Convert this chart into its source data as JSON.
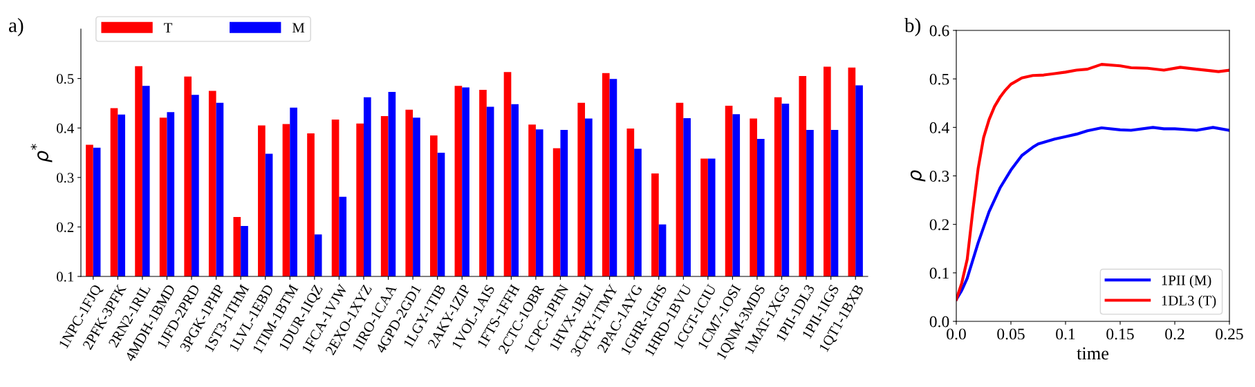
{
  "chart_data": [
    {
      "type": "bar",
      "title": "a)",
      "ylabel": "ρ$^{*}$",
      "categories": [
        "1NPC-1FJQ",
        "2PFK-3PFK",
        "2RN2-1RIL",
        "4MDH-1BMD",
        "1JFD-2PRD",
        "3PGK-1PHP",
        "1ST3-1THM",
        "1LVL-1EBD",
        "1TIM-1BTM",
        "1DUR-1IQZ",
        "1FCA-1VJW",
        "2EXO-1XYZ",
        "1IRO-1CAA",
        "4GPD-2GD1",
        "1LGY-1TIB",
        "2AKY-1ZIP",
        "1VOL-1AIS",
        "1FTS-1FFH",
        "2CTC-1OBR",
        "1CPC-1PHN",
        "1HVX-1BLI",
        "3CHY-1TMY",
        "2PAC-1AYG",
        "1GHR-1GHS",
        "1HRD-1BVU",
        "1CGT-1CIU",
        "1CM7-1OSI",
        "1QNM-3MDS",
        "1MAT-1XGS",
        "1PII-1DL3",
        "1PII-1IGS",
        "1QT1-1BXB"
      ],
      "series": [
        {
          "name": "T",
          "color": "#ff0000",
          "values": [
            0.366,
            0.44,
            0.525,
            0.421,
            0.504,
            0.475,
            0.22,
            0.405,
            0.408,
            0.389,
            0.417,
            0.409,
            0.424,
            0.437,
            0.385,
            0.485,
            0.477,
            0.513,
            0.407,
            0.359,
            0.451,
            0.511,
            0.399,
            0.308,
            0.451,
            0.338,
            0.445,
            0.419,
            0.462,
            0.505,
            0.524,
            0.522
          ]
        },
        {
          "name": "M",
          "color": "#0000ff",
          "values": [
            0.36,
            0.427,
            0.485,
            0.432,
            0.467,
            0.451,
            0.202,
            0.348,
            0.441,
            0.185,
            0.261,
            0.462,
            0.473,
            0.421,
            0.35,
            0.482,
            0.443,
            0.448,
            0.397,
            0.396,
            0.419,
            0.499,
            0.358,
            0.205,
            0.42,
            0.338,
            0.428,
            0.378,
            0.449,
            0.396,
            0.396,
            0.486
          ]
        }
      ],
      "ylim": [
        0.1,
        0.6
      ],
      "yticks": [
        0.1,
        0.2,
        0.3,
        0.4,
        0.5
      ],
      "grid": false,
      "legend": "top left"
    },
    {
      "type": "line",
      "title": "b)",
      "xlabel": "time",
      "ylabel": "ρ",
      "series": [
        {
          "name": "1PII (M)",
          "color": "#0000ff",
          "x": [
            0,
            0.005,
            0.01,
            0.02,
            0.03,
            0.04,
            0.05,
            0.06,
            0.07,
            0.075,
            0.09,
            0.1,
            0.11,
            0.12,
            0.133,
            0.15,
            0.16,
            0.18,
            0.19,
            0.2,
            0.22,
            0.235,
            0.25
          ],
          "values": [
            0.045,
            0.064,
            0.089,
            0.162,
            0.226,
            0.275,
            0.312,
            0.342,
            0.359,
            0.366,
            0.376,
            0.381,
            0.386,
            0.393,
            0.399,
            0.395,
            0.394,
            0.4,
            0.397,
            0.397,
            0.394,
            0.4,
            0.394
          ]
        },
        {
          "name": "1DL3 (T)",
          "color": "#ff0000",
          "x": [
            0,
            0.005,
            0.01,
            0.015,
            0.02,
            0.025,
            0.03,
            0.035,
            0.04,
            0.045,
            0.05,
            0.06,
            0.07,
            0.08,
            0.09,
            0.1,
            0.11,
            0.12,
            0.133,
            0.15,
            0.16,
            0.175,
            0.19,
            0.205,
            0.22,
            0.24,
            0.25
          ],
          "values": [
            0.045,
            0.079,
            0.128,
            0.226,
            0.315,
            0.379,
            0.416,
            0.443,
            0.462,
            0.477,
            0.489,
            0.502,
            0.507,
            0.508,
            0.511,
            0.514,
            0.518,
            0.52,
            0.53,
            0.527,
            0.523,
            0.522,
            0.518,
            0.524,
            0.52,
            0.515,
            0.518
          ]
        }
      ],
      "xlim": [
        0,
        0.25
      ],
      "xticks": [
        {
          "value": 0,
          "label": "0.0"
        },
        0.05,
        0.1,
        0.15,
        0.2,
        0.25
      ],
      "ylim": [
        0.0,
        0.6
      ],
      "yticks": [
        {
          "value": 0,
          "label": "0.0"
        },
        0.1,
        0.2,
        0.3,
        0.4,
        0.5,
        0.6
      ],
      "grid": false,
      "legend": "bottom right"
    }
  ]
}
